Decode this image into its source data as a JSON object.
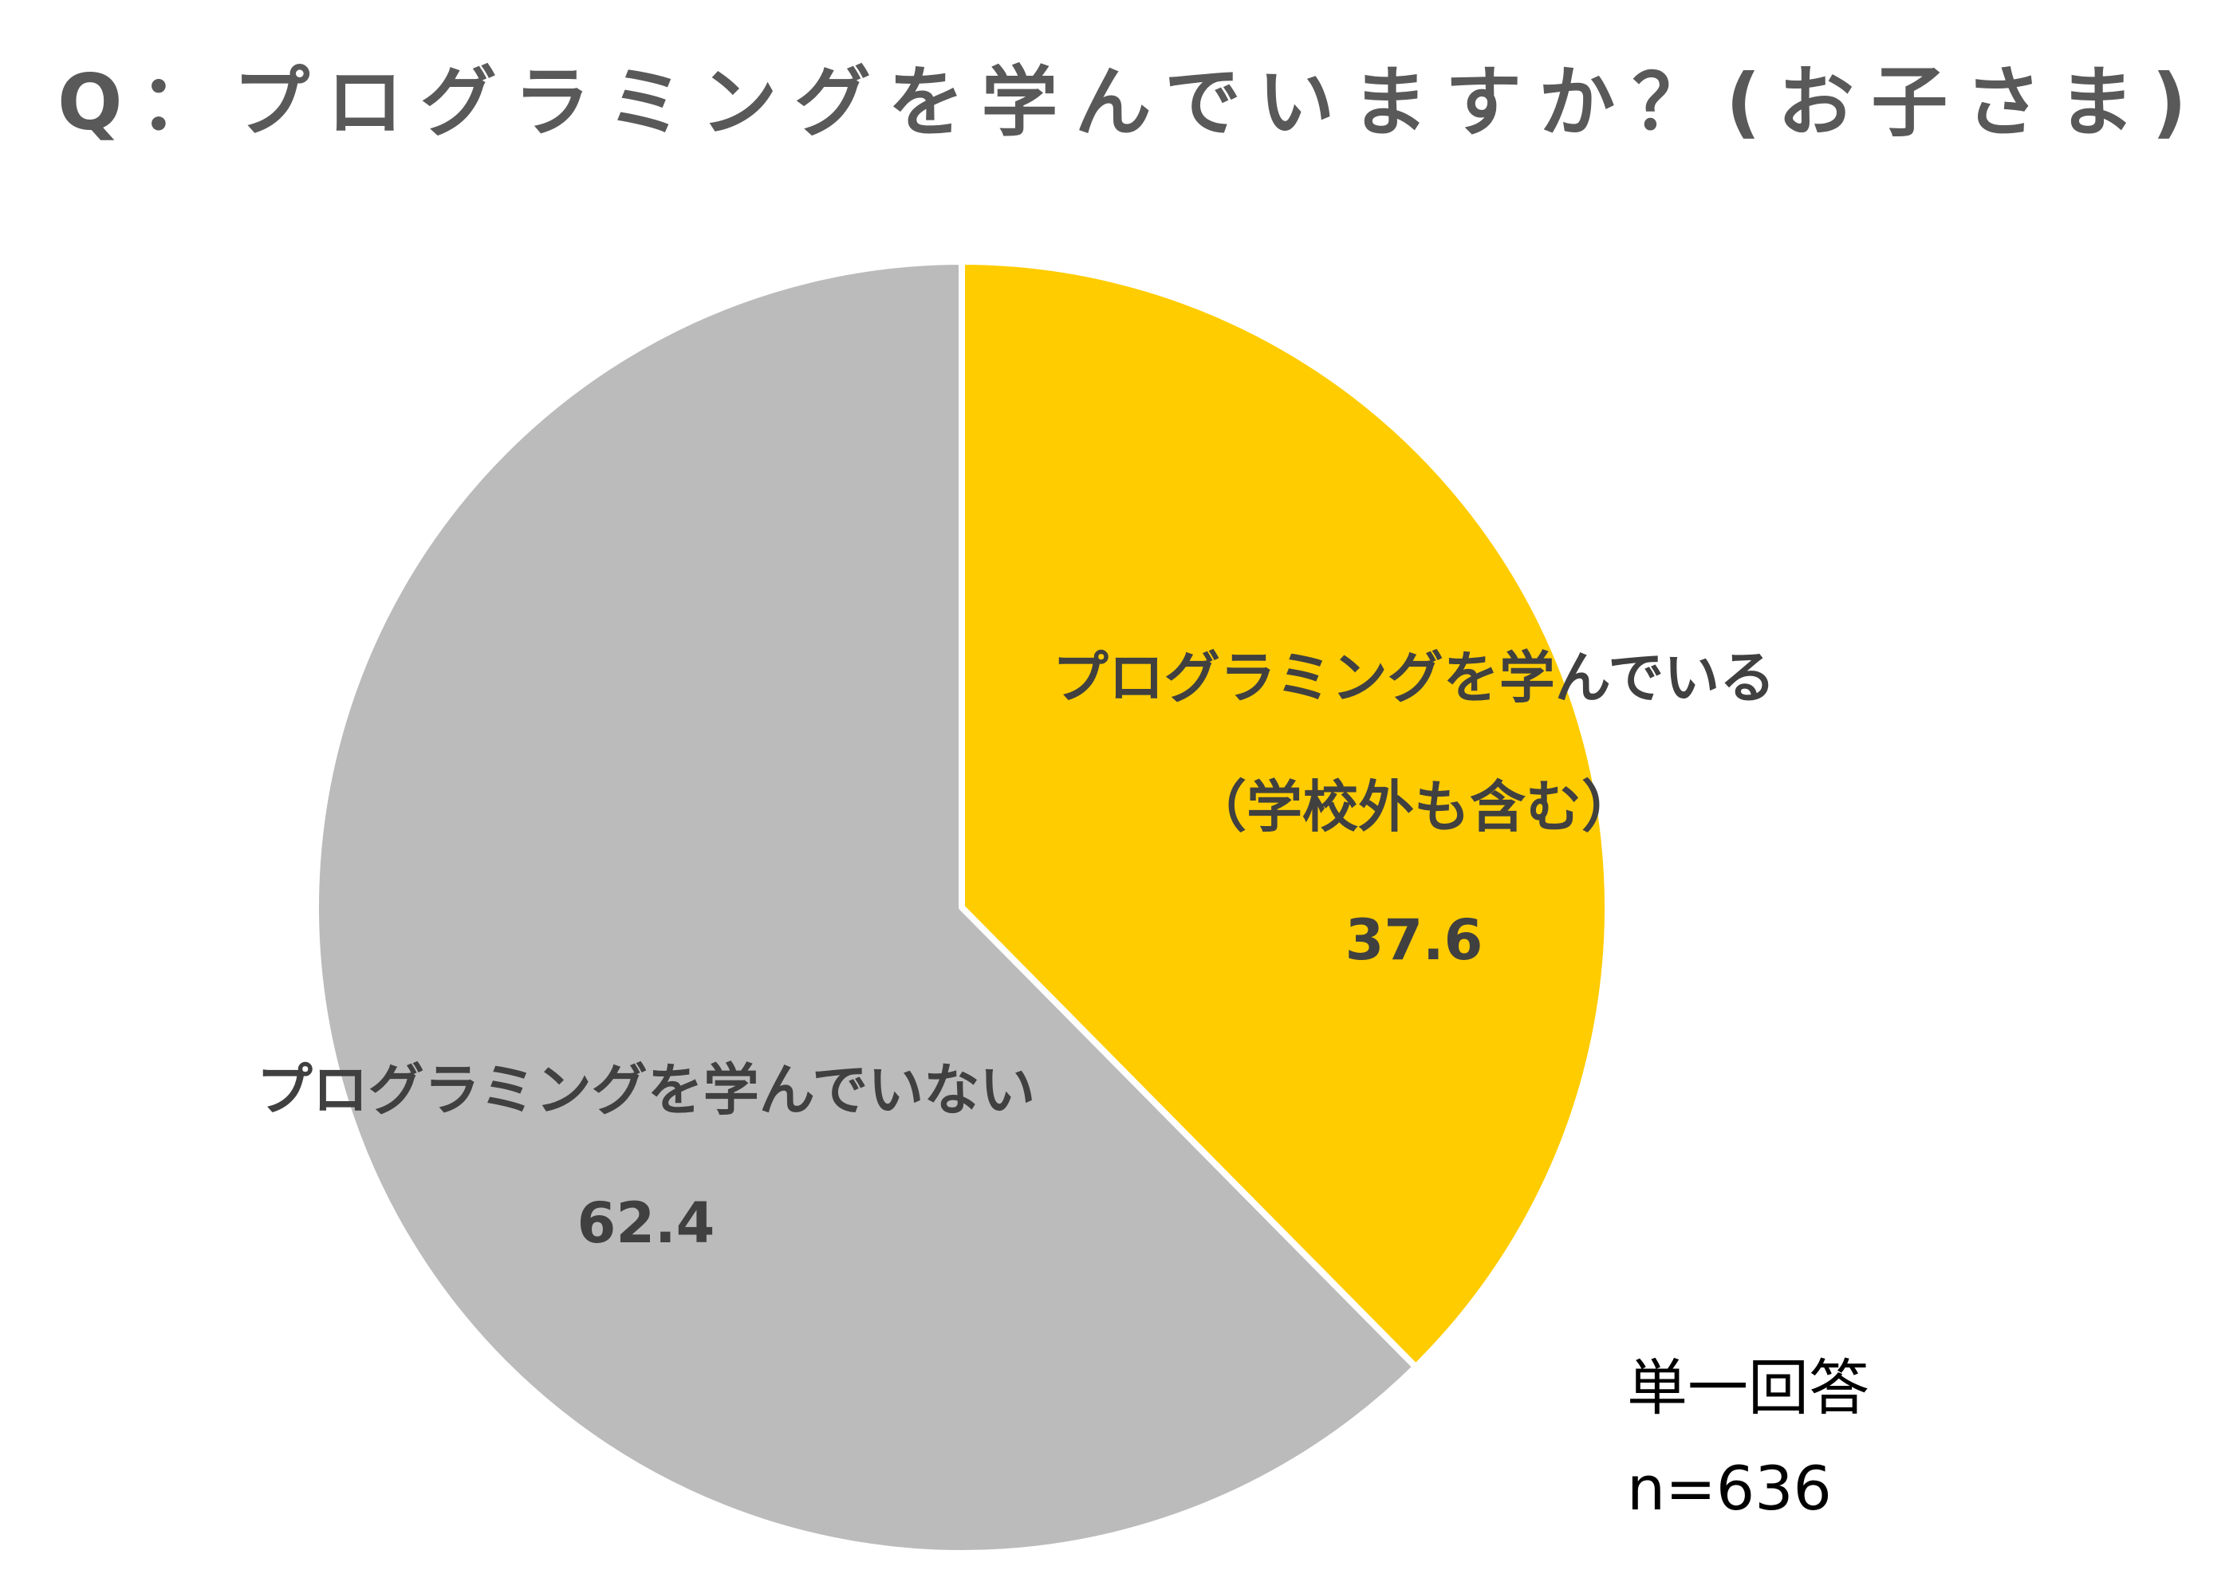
{
  "chart_data": {
    "type": "pie",
    "title": "Q：プログラミングを学んでいますか？(お子さま)",
    "categories": [
      "プログラミングを学んでいる\n（学校外も含む）",
      "プログラミングを学んでいない"
    ],
    "values": [
      37.6,
      62.4
    ],
    "colors": [
      "#ffcc00",
      "#bbbbbb"
    ],
    "notes": [
      "単一回答",
      "n=636"
    ]
  }
}
